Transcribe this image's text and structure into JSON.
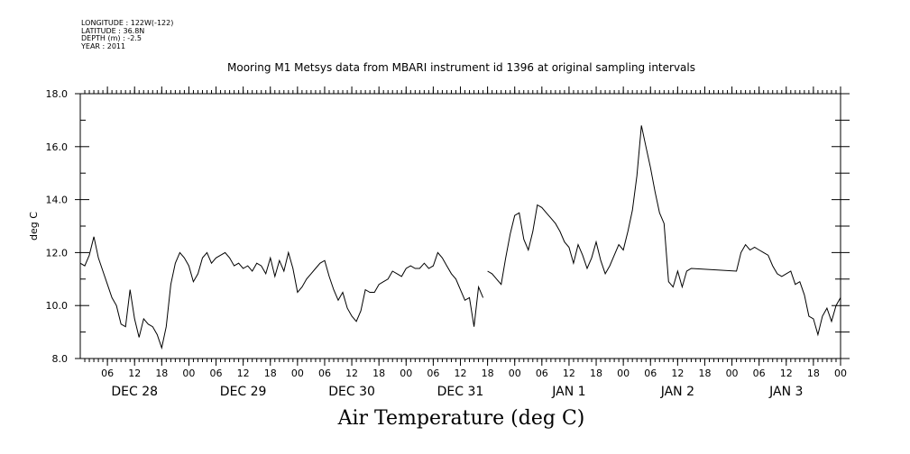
{
  "header": {
    "longitude": "LONGITUDE : 122W(-122)",
    "latitude": "LATITUDE : 36.8N",
    "depth": "DEPTH (m) : -2.5",
    "year": "YEAR : 2011"
  },
  "chart_data": {
    "type": "line",
    "title": "Mooring M1 Metsys data from MBARI instrument id 1396 at original sampling intervals",
    "bottom_title": "Air Temperature (deg C)",
    "ylabel": "deg C",
    "xlabel": "",
    "ylim": [
      8.0,
      18.0
    ],
    "yticks": [
      "8.0",
      "10.0",
      "12.0",
      "14.0",
      "16.0",
      "18.0"
    ],
    "xlim_hours": [
      0,
      168
    ],
    "hour_labels": [
      "06",
      "12",
      "18",
      "00",
      "06",
      "12",
      "18",
      "00",
      "06",
      "12",
      "18",
      "00",
      "06",
      "12",
      "18",
      "00",
      "06",
      "12",
      "18",
      "00",
      "06",
      "12",
      "18",
      "00",
      "06",
      "12",
      "18",
      "00"
    ],
    "day_labels": [
      "DEC 28",
      "DEC 29",
      "DEC 30",
      "DEC 31",
      "JAN  1",
      "JAN  2",
      "JAN  3"
    ],
    "grid": false,
    "series": [
      {
        "name": "",
        "segments": [
          [
            [
              0,
              11.6
            ],
            [
              1,
              11.5
            ],
            [
              2,
              11.9
            ],
            [
              3,
              12.6
            ],
            [
              4,
              11.8
            ],
            [
              5,
              11.3
            ],
            [
              6,
              10.8
            ],
            [
              7,
              10.3
            ],
            [
              8,
              10.0
            ],
            [
              9,
              9.3
            ],
            [
              10,
              9.2
            ],
            [
              11,
              10.6
            ],
            [
              12,
              9.5
            ],
            [
              13,
              8.8
            ],
            [
              14,
              9.5
            ],
            [
              15,
              9.3
            ],
            [
              16,
              9.2
            ],
            [
              17,
              8.9
            ],
            [
              18,
              8.4
            ],
            [
              19,
              9.2
            ],
            [
              20,
              10.8
            ],
            [
              21,
              11.6
            ],
            [
              22,
              12.0
            ],
            [
              23,
              11.8
            ],
            [
              24,
              11.5
            ],
            [
              25,
              10.9
            ],
            [
              26,
              11.2
            ],
            [
              27,
              11.8
            ],
            [
              28,
              12.0
            ],
            [
              29,
              11.6
            ],
            [
              30,
              11.8
            ],
            [
              31,
              11.9
            ],
            [
              32,
              12.0
            ],
            [
              33,
              11.8
            ],
            [
              34,
              11.5
            ],
            [
              35,
              11.6
            ],
            [
              36,
              11.4
            ],
            [
              37,
              11.5
            ],
            [
              38,
              11.3
            ],
            [
              39,
              11.6
            ],
            [
              40,
              11.5
            ],
            [
              41,
              11.2
            ],
            [
              42,
              11.8
            ],
            [
              43,
              11.1
            ],
            [
              44,
              11.7
            ],
            [
              45,
              11.3
            ],
            [
              46,
              12.0
            ],
            [
              47,
              11.4
            ],
            [
              48,
              10.5
            ],
            [
              49,
              10.7
            ],
            [
              50,
              11.0
            ],
            [
              51,
              11.2
            ],
            [
              52,
              11.4
            ],
            [
              53,
              11.6
            ],
            [
              54,
              11.7
            ],
            [
              55,
              11.1
            ],
            [
              56,
              10.6
            ],
            [
              57,
              10.2
            ],
            [
              58,
              10.5
            ],
            [
              59,
              9.9
            ],
            [
              60,
              9.6
            ],
            [
              61,
              9.4
            ],
            [
              62,
              9.8
            ],
            [
              63,
              10.6
            ],
            [
              64,
              10.5
            ],
            [
              65,
              10.5
            ],
            [
              66,
              10.8
            ],
            [
              67,
              10.9
            ],
            [
              68,
              11.0
            ],
            [
              69,
              11.3
            ],
            [
              70,
              11.2
            ],
            [
              71,
              11.1
            ],
            [
              72,
              11.4
            ],
            [
              73,
              11.5
            ],
            [
              74,
              11.4
            ],
            [
              75,
              11.4
            ],
            [
              76,
              11.6
            ],
            [
              77,
              11.4
            ],
            [
              78,
              11.5
            ],
            [
              79,
              12.0
            ],
            [
              80,
              11.8
            ],
            [
              81,
              11.5
            ],
            [
              82,
              11.2
            ],
            [
              83,
              11.0
            ],
            [
              84,
              10.6
            ],
            [
              85,
              10.2
            ],
            [
              86,
              10.3
            ],
            [
              87,
              9.2
            ],
            [
              88,
              10.7
            ],
            [
              89,
              10.3
            ]
          ],
          [
            [
              90,
              11.3
            ],
            [
              91,
              11.2
            ],
            [
              92,
              11.0
            ],
            [
              93,
              10.8
            ],
            [
              94,
              11.8
            ],
            [
              95,
              12.7
            ],
            [
              96,
              13.4
            ],
            [
              97,
              13.5
            ],
            [
              98,
              12.5
            ],
            [
              99,
              12.1
            ],
            [
              100,
              12.8
            ],
            [
              101,
              13.8
            ],
            [
              102,
              13.7
            ],
            [
              103,
              13.5
            ],
            [
              104,
              13.3
            ],
            [
              105,
              13.1
            ],
            [
              106,
              12.8
            ],
            [
              107,
              12.4
            ],
            [
              108,
              12.2
            ],
            [
              109,
              11.6
            ],
            [
              110,
              12.3
            ],
            [
              111,
              11.9
            ],
            [
              112,
              11.4
            ],
            [
              113,
              11.8
            ],
            [
              114,
              12.4
            ],
            [
              115,
              11.7
            ],
            [
              116,
              11.2
            ],
            [
              117,
              11.5
            ],
            [
              118,
              11.9
            ],
            [
              119,
              12.3
            ],
            [
              120,
              12.1
            ],
            [
              121,
              12.8
            ],
            [
              122,
              13.6
            ],
            [
              123,
              14.9
            ],
            [
              124,
              16.8
            ],
            [
              125,
              16.0
            ],
            [
              126,
              15.2
            ],
            [
              127,
              14.3
            ],
            [
              128,
              13.5
            ],
            [
              129,
              13.1
            ],
            [
              130,
              10.9
            ],
            [
              131,
              10.7
            ],
            [
              132,
              11.3
            ],
            [
              133,
              10.7
            ],
            [
              134,
              11.3
            ],
            [
              135,
              11.4
            ],
            [
              145,
              11.3
            ],
            [
              146,
              12.0
            ],
            [
              147,
              12.3
            ],
            [
              148,
              12.1
            ],
            [
              149,
              12.2
            ],
            [
              150,
              12.1
            ],
            [
              151,
              12.0
            ],
            [
              152,
              11.9
            ],
            [
              153,
              11.5
            ],
            [
              154,
              11.2
            ],
            [
              155,
              11.1
            ],
            [
              156,
              11.2
            ],
            [
              157,
              11.3
            ],
            [
              158,
              10.8
            ],
            [
              159,
              10.9
            ],
            [
              160,
              10.4
            ],
            [
              161,
              9.6
            ],
            [
              162,
              9.5
            ],
            [
              163,
              8.9
            ],
            [
              164,
              9.6
            ],
            [
              165,
              9.9
            ],
            [
              166,
              9.4
            ],
            [
              167,
              10.0
            ],
            [
              168,
              10.3
            ]
          ]
        ]
      }
    ]
  }
}
